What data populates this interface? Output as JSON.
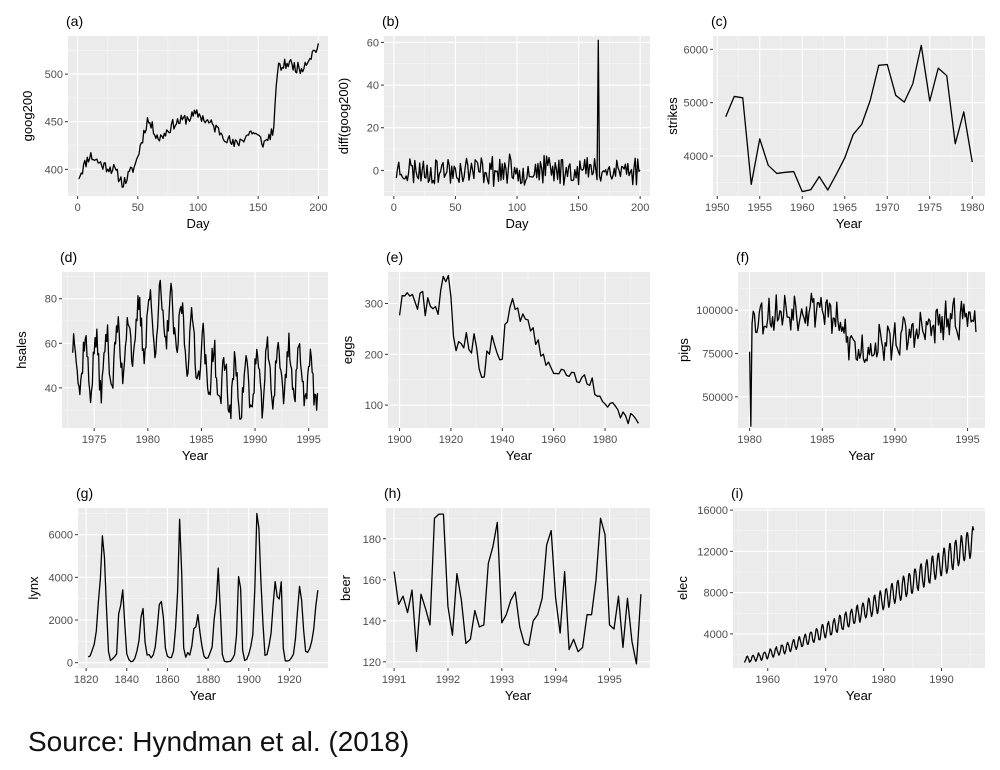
{
  "source_note": "Source: Hyndman et al. (2018)",
  "style": {
    "panel_bg": "#ebebeb",
    "grid_major": "#ffffff",
    "line": "#000000",
    "tick_text": "#4d4d4d",
    "title_text": "#000000"
  },
  "chart_data": [
    {
      "id": "a",
      "type": "line",
      "title": "(a)",
      "xlabel": "Day",
      "ylabel": "goog200",
      "xlim": [
        -8,
        208
      ],
      "ylim": [
        372,
        540
      ],
      "xticks": [
        0,
        50,
        100,
        150,
        200
      ],
      "yticks": [
        400,
        450,
        500
      ],
      "x_start": 1,
      "x_step": 1,
      "series_seed": 11,
      "grid": true,
      "description_keypoints": [
        [
          1,
          393
        ],
        [
          10,
          415
        ],
        [
          20,
          405
        ],
        [
          30,
          400
        ],
        [
          38,
          385
        ],
        [
          48,
          405
        ],
        [
          58,
          452
        ],
        [
          68,
          432
        ],
        [
          80,
          448
        ],
        [
          100,
          458
        ],
        [
          120,
          438
        ],
        [
          130,
          425
        ],
        [
          145,
          440
        ],
        [
          155,
          427
        ],
        [
          163,
          442
        ],
        [
          166,
          505
        ],
        [
          175,
          512
        ],
        [
          185,
          505
        ],
        [
          200,
          530
        ]
      ]
    },
    {
      "id": "b",
      "type": "line",
      "title": "(b)",
      "xlabel": "Day",
      "ylabel": "diff(goog200)",
      "xlim": [
        -8,
        208
      ],
      "ylim": [
        -12,
        63
      ],
      "xticks": [
        0,
        50,
        100,
        150,
        200
      ],
      "yticks": [
        0,
        20,
        40,
        60
      ],
      "x_start": 2,
      "x_step": 1,
      "noise_amplitude": 6,
      "spike": [
        166,
        61
      ],
      "series_seed": 23,
      "grid": true
    },
    {
      "id": "c",
      "type": "line",
      "title": "(c)",
      "xlabel": "Year",
      "ylabel": "strikes",
      "xlim": [
        1949.5,
        1981.5
      ],
      "ylim": [
        3250,
        6250
      ],
      "xticks": [
        1950,
        1955,
        1960,
        1965,
        1970,
        1975,
        1980
      ],
      "yticks": [
        4000,
        5000,
        6000
      ],
      "x": [
        1951,
        1952,
        1953,
        1954,
        1955,
        1956,
        1957,
        1958,
        1959,
        1960,
        1961,
        1962,
        1963,
        1964,
        1965,
        1966,
        1967,
        1968,
        1969,
        1970,
        1971,
        1972,
        1973,
        1974,
        1975,
        1976,
        1977,
        1978,
        1979,
        1980
      ],
      "values": [
        4737,
        5117,
        5091,
        3468,
        4320,
        3825,
        3673,
        3694,
        3708,
        3333,
        3367,
        3614,
        3362,
        3655,
        3963,
        4405,
        4595,
        5045,
        5700,
        5716,
        5138,
        5010,
        5353,
        6074,
        5031,
        5648,
        5506,
        4230,
        4827,
        3885
      ],
      "grid": true
    },
    {
      "id": "d",
      "type": "line",
      "title": "(d)",
      "xlabel": "Year",
      "ylabel": "hsales",
      "xlim": [
        1972.0,
        1996.8
      ],
      "ylim": [
        22,
        92
      ],
      "xticks": [
        1975,
        1980,
        1985,
        1990,
        1995
      ],
      "yticks": [
        40,
        60,
        80
      ],
      "x_start": 1973.0,
      "x_step": 0.0833,
      "n": 275,
      "series_seed": 37,
      "grid": true
    },
    {
      "id": "e",
      "type": "line",
      "title": "(e)",
      "xlabel": "Year",
      "ylabel": "eggs",
      "xlim": [
        1895.5,
        1997.5
      ],
      "ylim": [
        55,
        362
      ],
      "xticks": [
        1900,
        1920,
        1940,
        1960,
        1980
      ],
      "yticks": [
        100,
        200,
        300
      ],
      "x_start": 1900,
      "x_step": 1,
      "values": [
        276.79,
        315.42,
        314.87,
        321.25,
        314.54,
        317.92,
        303.39,
        288.56,
        320.62,
        323.83,
        276.07,
        311.29,
        294.28,
        289.68,
        293.94,
        278.66,
        325.01,
        353.32,
        342.83,
        355.16,
        313.08,
        235.01,
        207.14,
        224.89,
        221.02,
        212.57,
        242.76,
        209.51,
        202.52,
        240.51,
        212.69,
        170.82,
        154.47,
        155.47,
        206.41,
        200.27,
        236.79,
        218.14,
        201.78,
        189.18,
        190.29,
        258.74,
        263.88,
        292.81,
        309.63,
        288.62,
        291.14,
        264.91,
        279.42,
        269.28,
        267.65,
        245.93,
        252.37,
        219.35,
        228.59,
        196.41,
        200.27,
        178.29,
        184.73,
        173.39,
        162.29,
        162.29,
        161.71,
        170.61,
        168.87,
        158.61,
        156.63,
        164.62,
        163.91,
        146.05,
        144.29,
        154.71,
        159.69,
        141.55,
        138.81,
        153.57,
        121.09,
        117.58,
        117.58,
        107.22,
        102.31,
        96.08,
        103.42,
        104.88,
        98.19,
        90.83,
        74.87,
        86.44,
        79.09,
        63.71,
        83.45,
        79.45,
        72.62,
        64.07
      ],
      "grid": true
    },
    {
      "id": "f",
      "type": "line",
      "title": "(f)",
      "xlabel": "Year",
      "ylabel": "pigs",
      "xlim": [
        1979.2,
        1996.2
      ],
      "ylim": [
        32000,
        122000
      ],
      "xticks": [
        1980,
        1985,
        1990,
        1995
      ],
      "yticks": [
        50000,
        75000,
        100000
      ],
      "x_start": 1980.0,
      "x_step": 0.0833,
      "n": 188,
      "series_seed": 53,
      "grid": true
    },
    {
      "id": "g",
      "type": "line",
      "title": "(g)",
      "xlabel": "Year",
      "ylabel": "lynx",
      "xlim": [
        1816,
        1939
      ],
      "ylim": [
        -250,
        7250
      ],
      "xticks": [
        1820,
        1840,
        1860,
        1880,
        1900,
        1920
      ],
      "yticks": [
        0,
        2000,
        4000,
        6000
      ],
      "x_start": 1821,
      "x_step": 1,
      "values": [
        269,
        321,
        585,
        871,
        1475,
        2821,
        3928,
        5943,
        4950,
        2577,
        523,
        98,
        184,
        279,
        409,
        2285,
        2685,
        3409,
        1824,
        409,
        151,
        45,
        68,
        213,
        546,
        1033,
        2129,
        2536,
        957,
        361,
        377,
        225,
        360,
        731,
        1638,
        2725,
        2871,
        2119,
        684,
        299,
        236,
        245,
        552,
        1623,
        3311,
        6721,
        4254,
        687,
        255,
        473,
        358,
        784,
        1594,
        1676,
        2251,
        1426,
        756,
        299,
        201,
        229,
        469,
        736,
        2042,
        2811,
        4431,
        2511,
        389,
        73,
        39,
        49,
        59,
        188,
        377,
        1292,
        4031,
        3495,
        587,
        105,
        153,
        387,
        758,
        1307,
        3465,
        6991,
        6313,
        3794,
        1836,
        345,
        382,
        808,
        1388,
        2713,
        3800,
        3091,
        2985,
        3790,
        674,
        81,
        80,
        108,
        229,
        399,
        1132,
        2432,
        3574,
        2935,
        1537,
        529,
        485,
        662,
        1000,
        1590,
        2657,
        3396
      ],
      "grid": true
    },
    {
      "id": "h",
      "type": "line",
      "title": "(h)",
      "xlabel": "Year",
      "ylabel": "beer",
      "xlim": [
        1990.85,
        1995.75
      ],
      "ylim": [
        117,
        195
      ],
      "xticks": [
        1991,
        1992,
        1993,
        1994,
        1995
      ],
      "yticks": [
        120,
        140,
        160,
        180
      ],
      "x_start": 1991.0,
      "x_step": 0.0833,
      "values": [
        164,
        148,
        152,
        144,
        155,
        125,
        153,
        146,
        138,
        190,
        192,
        192,
        147,
        133,
        163,
        150,
        129,
        131,
        145,
        137,
        138,
        168,
        176,
        188,
        139,
        143,
        150,
        154,
        137,
        129,
        128,
        140,
        143,
        151,
        177,
        184,
        151,
        134,
        164,
        126,
        131,
        125,
        127,
        143,
        143,
        160,
        190,
        182,
        138,
        136,
        152,
        127,
        151,
        130,
        119,
        153
      ],
      "grid": true
    },
    {
      "id": "i",
      "type": "line",
      "title": "(i)",
      "xlabel": "Year",
      "ylabel": "elec",
      "xlim": [
        1954.0,
        1997.5
      ],
      "ylim": [
        700,
        16200
      ],
      "xticks": [
        1960,
        1970,
        1980,
        1990
      ],
      "yticks": [
        4000,
        8000,
        12000,
        16000
      ],
      "x_start": 1956.0,
      "x_step": 0.0833,
      "n": 476,
      "series_seed": 71,
      "grid": true
    }
  ]
}
